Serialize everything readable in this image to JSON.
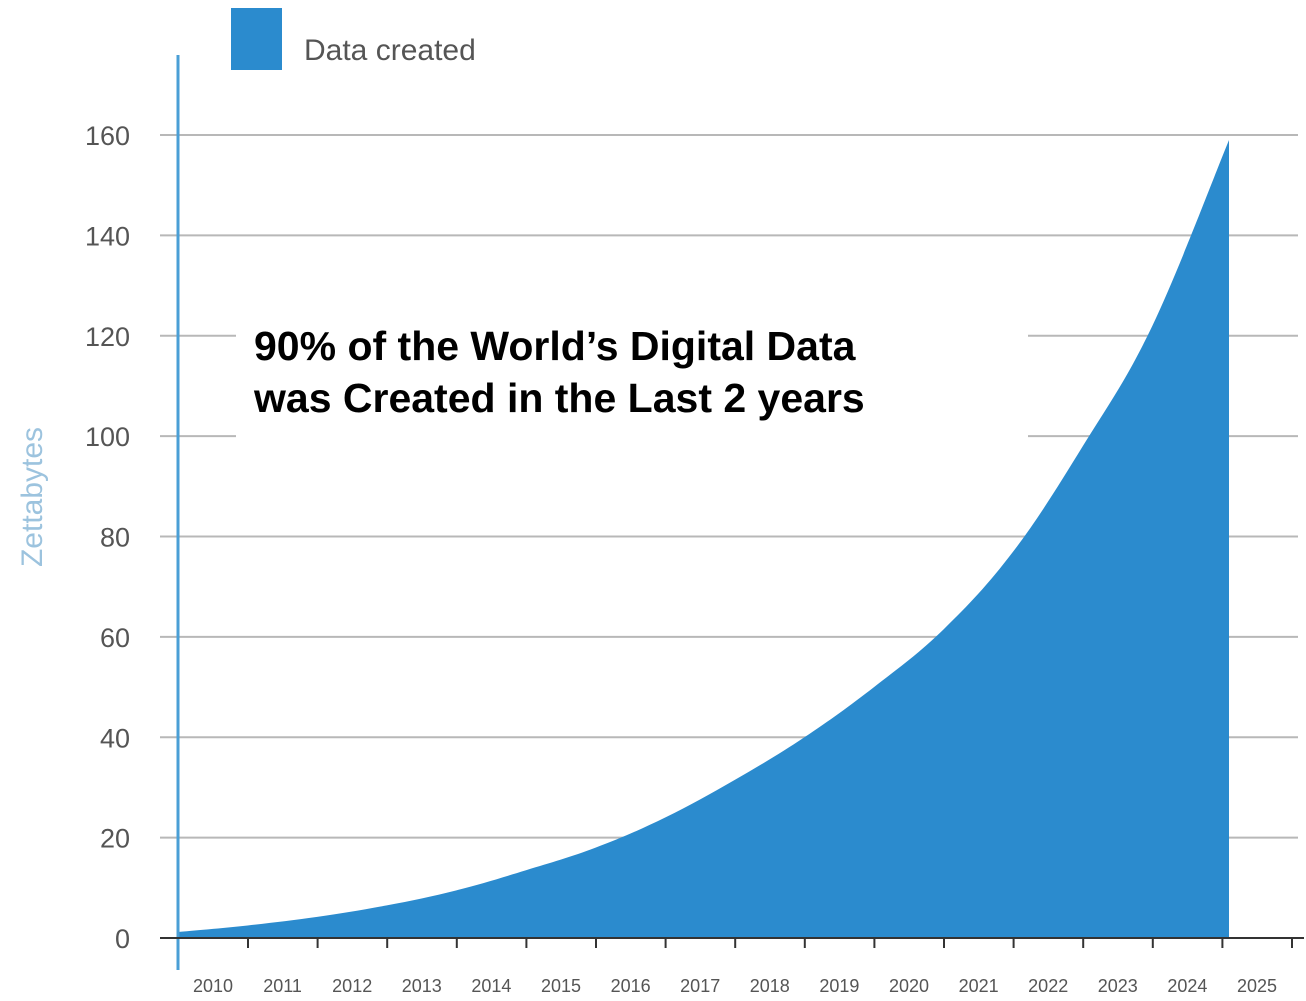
{
  "chart_data": {
    "type": "area",
    "title": "",
    "xlabel": "",
    "ylabel": "Zettabytes",
    "ylim": [
      0,
      160
    ],
    "yticks": [
      "0",
      "20",
      "40",
      "60",
      "80",
      "100",
      "120",
      "140",
      "160"
    ],
    "categories": [
      "2010",
      "2011",
      "2012",
      "2013",
      "2014",
      "2015",
      "2016",
      "2017",
      "2018",
      "2019",
      "2020",
      "2021",
      "2022",
      "2023",
      "2024",
      "2025"
    ],
    "series": [
      {
        "name": "Data created",
        "color": "#2b8bce",
        "values": [
          1.2,
          2.5,
          4.2,
          6.5,
          9.5,
          13.5,
          18,
          24,
          31.5,
          40,
          50,
          61.5,
          77,
          98,
          122,
          159
        ]
      }
    ],
    "legend": {
      "position": "top-left",
      "items": [
        {
          "label": "Data created",
          "color": "#2b8bce"
        }
      ]
    },
    "grid": true,
    "annotation": {
      "line1": "90% of the World’s Digital Data",
      "line2": "was Created in the Last 2 years"
    }
  },
  "colors": {
    "area": "#2b8bce",
    "axis": "#4a9fd6",
    "grid": "#b8b8b8",
    "ylabel": "#9cc3de"
  }
}
